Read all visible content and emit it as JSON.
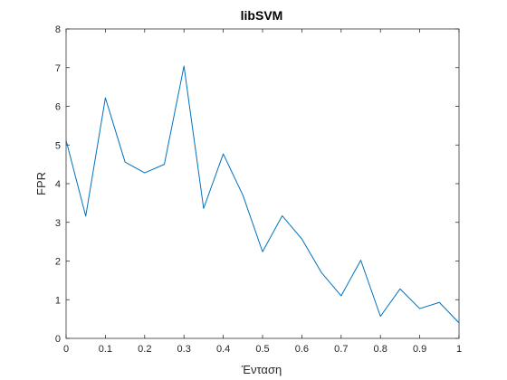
{
  "chart_data": {
    "type": "line",
    "title": "libSVM",
    "xlabel": "Ένταση",
    "ylabel": "FPR",
    "xlim": [
      0,
      1
    ],
    "ylim": [
      0,
      8
    ],
    "xticks": [
      "0",
      "0.1",
      "0.2",
      "0.3",
      "0.4",
      "0.5",
      "0.6",
      "0.7",
      "0.8",
      "0.9",
      "1"
    ],
    "yticks": [
      "0",
      "1",
      "2",
      "3",
      "4",
      "5",
      "6",
      "7",
      "8"
    ],
    "grid": false,
    "series": [
      {
        "color": "#0072BD",
        "x": [
          0,
          0.05,
          0.1,
          0.15,
          0.2,
          0.25,
          0.3,
          0.35,
          0.4,
          0.45,
          0.5,
          0.55,
          0.6,
          0.65,
          0.7,
          0.75,
          0.8,
          0.85,
          0.9,
          0.95,
          1.0
        ],
        "y": [
          5.12,
          3.16,
          6.22,
          4.56,
          4.28,
          4.5,
          7.04,
          3.36,
          4.77,
          3.7,
          2.24,
          3.17,
          2.57,
          1.7,
          1.1,
          2.02,
          0.57,
          1.28,
          0.77,
          0.93,
          0.4
        ]
      }
    ]
  }
}
